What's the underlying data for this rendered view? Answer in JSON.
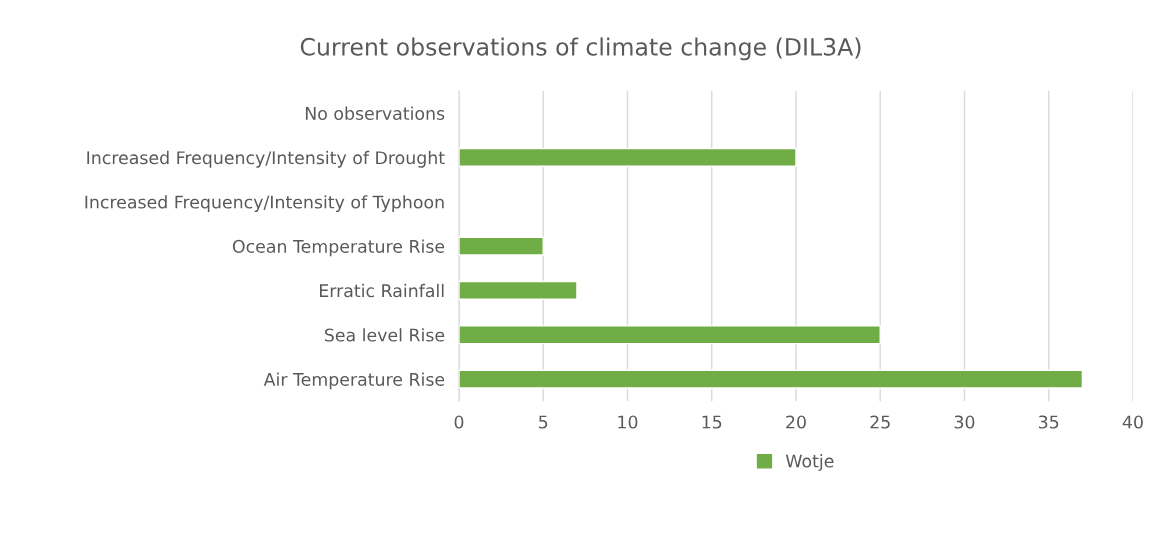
{
  "chart_data": {
    "type": "bar",
    "orientation": "horizontal",
    "title": "Current observations of climate change (DIL3A)",
    "categories": [
      "No observations",
      "Increased Frequency/Intensity of Drought",
      "Increased Frequency/Intensity of Typhoon",
      "Ocean Temperature Rise",
      "Erratic Rainfall",
      "Sea level Rise",
      "Air Temperature Rise"
    ],
    "series": [
      {
        "name": "Wotje",
        "color": "#70ad47",
        "values": [
          null,
          20,
          null,
          5,
          7,
          25,
          37
        ]
      }
    ],
    "xlim": [
      0,
      40
    ],
    "xticks": [
      0,
      5,
      10,
      15,
      20,
      25,
      30,
      35,
      40
    ],
    "grid": "x",
    "legend": "bottom"
  }
}
